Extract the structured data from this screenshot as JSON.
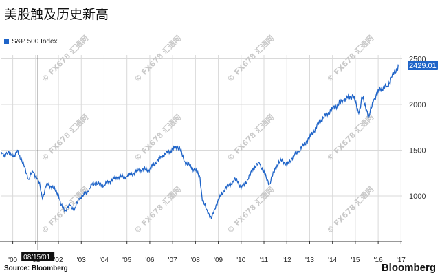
{
  "title": "美股触及历史新高",
  "source": "Source: Bloomberg",
  "brand": "Bloomberg",
  "colors": {
    "series": "#1f64c8",
    "grid": "#d9d9d9",
    "label_bg": "#1f64c8",
    "cursor_bg": "#111111"
  },
  "watermark": "© FX678 汇通网",
  "chart_data": {
    "type": "line",
    "legend": "S&P 500 Index",
    "legend_position": "top-left",
    "grid": true,
    "x_tick_labels": [
      "'00",
      "'01",
      "'02",
      "'03",
      "'04",
      "'05",
      "'06",
      "'07",
      "'08",
      "'09",
      "'10",
      "'11",
      "'12",
      "'13",
      "'14",
      "'15",
      "'16",
      "'17"
    ],
    "y_ticks": [
      1000,
      1500,
      2000,
      2500
    ],
    "ylim": [
      750,
      2500
    ],
    "last_value": "2429.01",
    "cursor_label": "08/15/01",
    "series": [
      {
        "name": "S&P 500 Index",
        "x": [
          2000.0,
          2000.1,
          2000.2,
          2000.4,
          2000.6,
          2000.7,
          2000.9,
          2001.0,
          2001.2,
          2001.3,
          2001.4,
          2001.6,
          2001.7,
          2001.8,
          2002.0,
          2002.3,
          2002.5,
          2002.6,
          2002.8,
          2003.0,
          2003.2,
          2003.4,
          2003.6,
          2003.8,
          2004.0,
          2004.5,
          2005.0,
          2005.5,
          2006.0,
          2006.5,
          2007.0,
          2007.5,
          2007.8,
          2008.0,
          2008.3,
          2008.5,
          2008.7,
          2008.8,
          2009.0,
          2009.2,
          2009.4,
          2009.6,
          2009.8,
          2010.0,
          2010.3,
          2010.5,
          2010.8,
          2011.0,
          2011.3,
          2011.6,
          2011.75,
          2012.0,
          2012.3,
          2012.5,
          2012.8,
          2013.0,
          2013.5,
          2014.0,
          2014.5,
          2015.0,
          2015.4,
          2015.65,
          2015.8,
          2016.1,
          2016.3,
          2016.6,
          2016.9,
          2017.1,
          2017.4
        ],
        "values": [
          1480,
          1440,
          1460,
          1470,
          1430,
          1500,
          1380,
          1320,
          1180,
          1240,
          1260,
          1180,
          1100,
          970,
          1140,
          1080,
          1020,
          900,
          840,
          900,
          850,
          970,
          1010,
          1050,
          1140,
          1120,
          1200,
          1210,
          1280,
          1290,
          1430,
          1510,
          1540,
          1380,
          1320,
          1280,
          1200,
          950,
          850,
          750,
          900,
          1000,
          1080,
          1120,
          1190,
          1080,
          1180,
          1290,
          1360,
          1200,
          1130,
          1310,
          1400,
          1330,
          1440,
          1480,
          1640,
          1830,
          1950,
          2050,
          2100,
          1900,
          2080,
          1870,
          2050,
          2170,
          2200,
          2300,
          2429
        ]
      }
    ]
  }
}
